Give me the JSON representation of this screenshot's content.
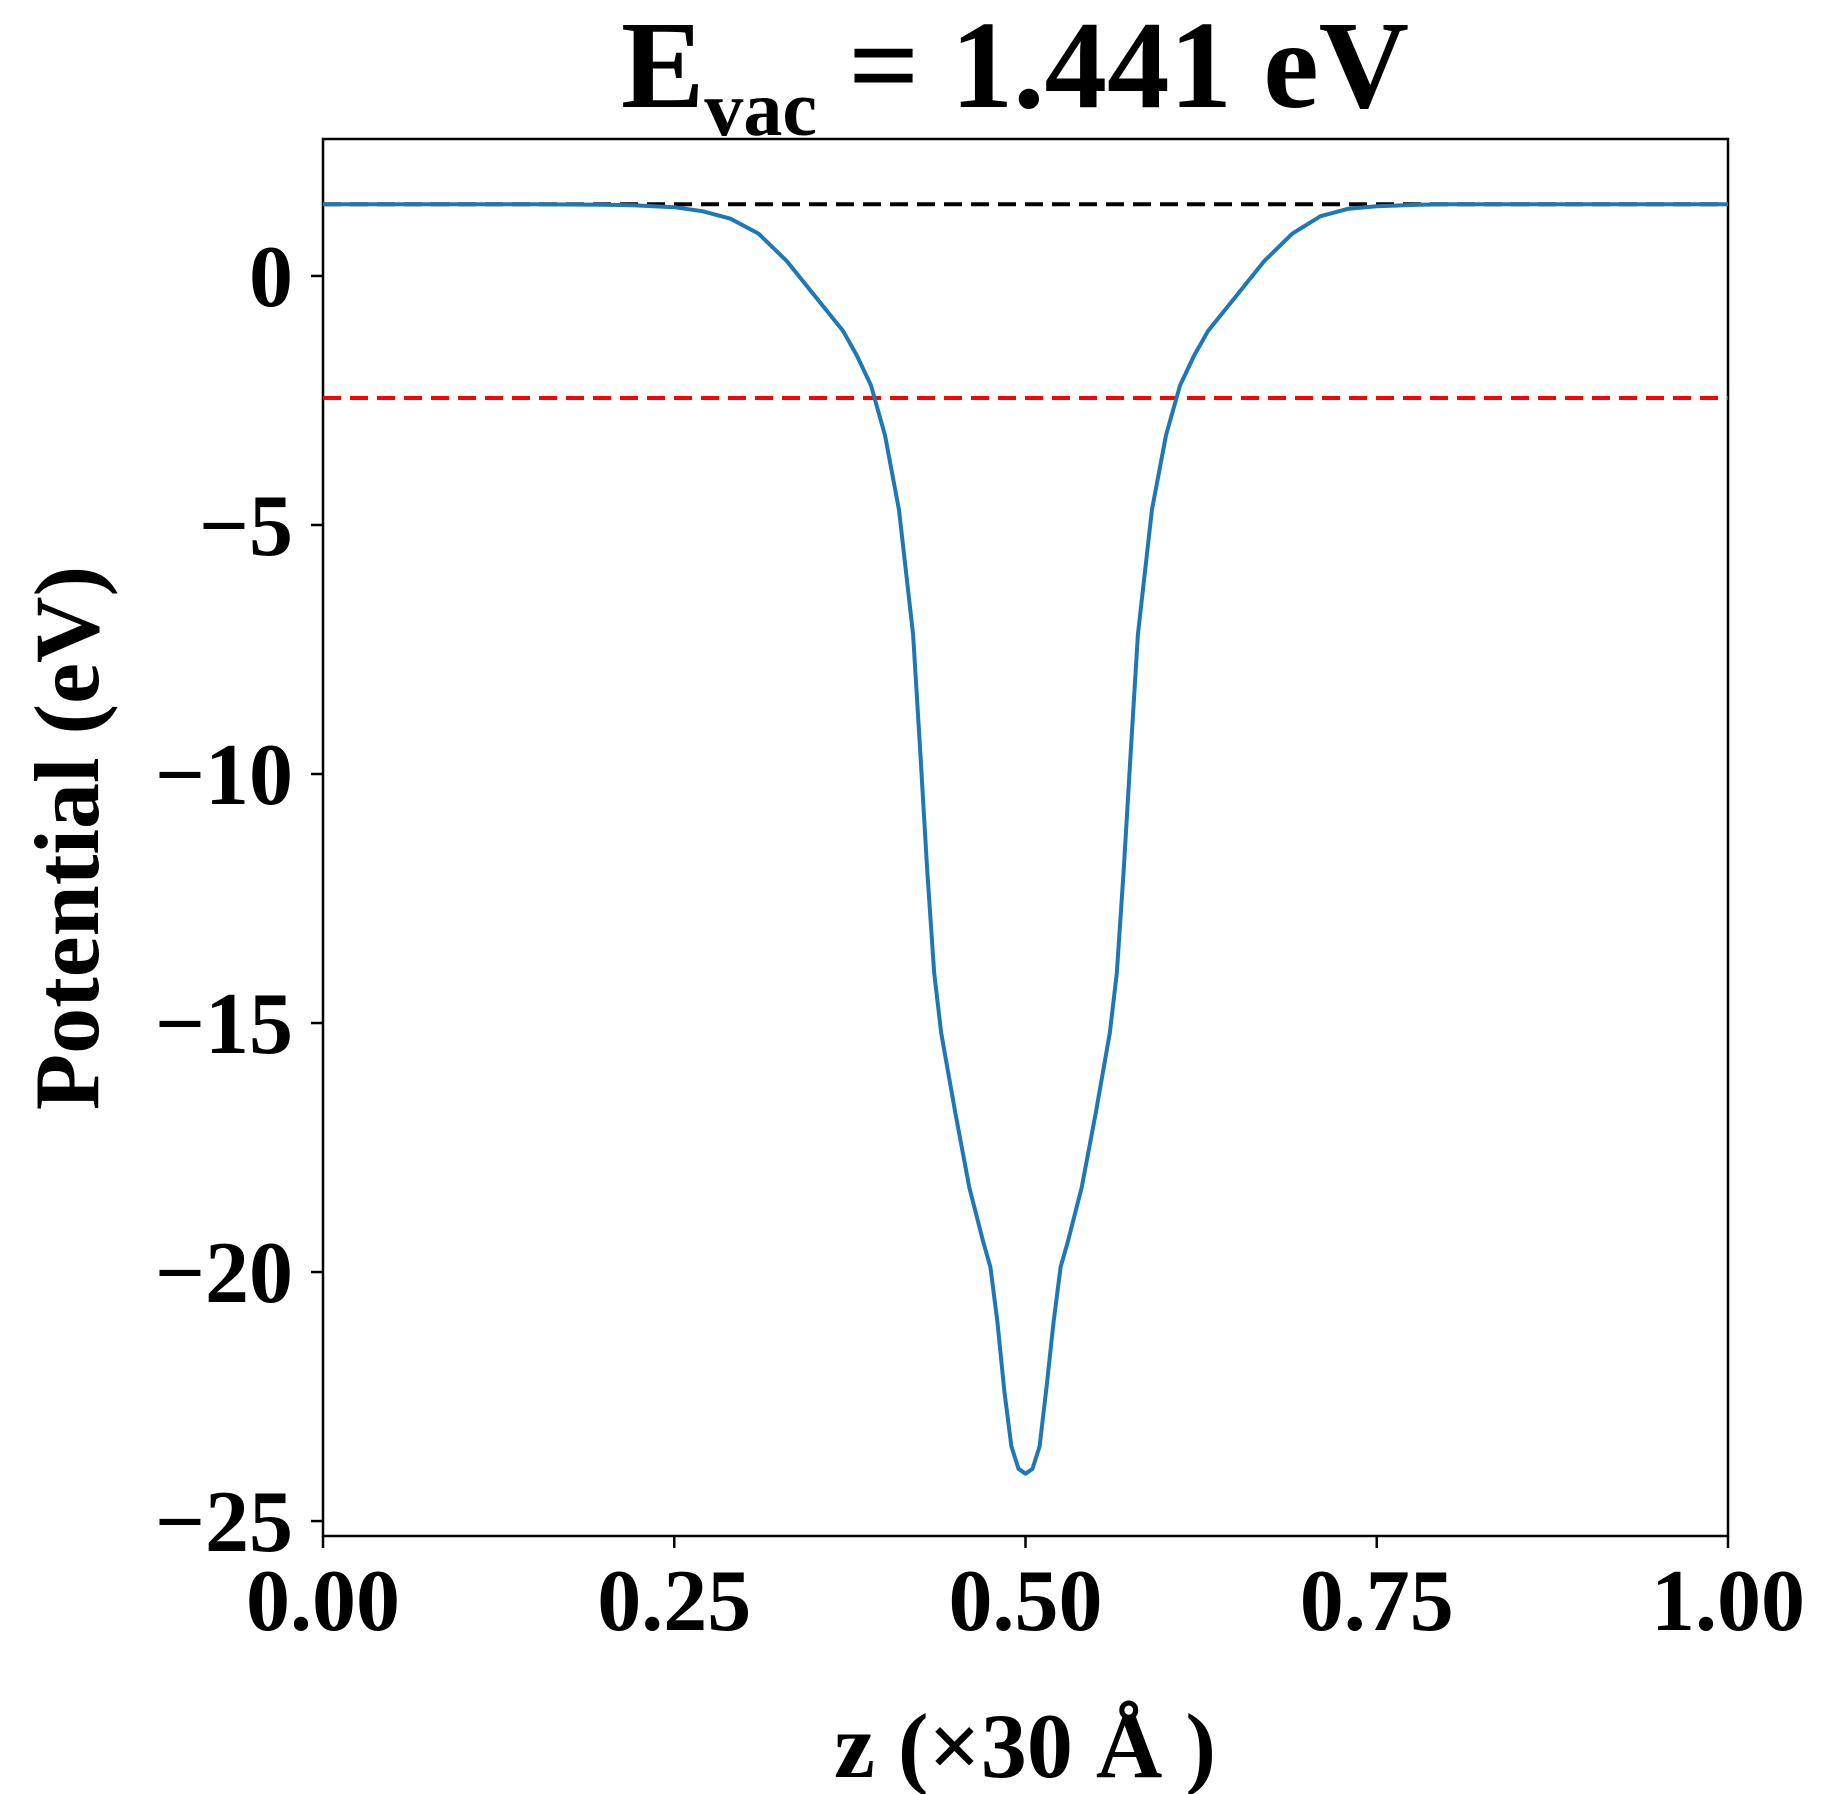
{
  "chart_data": {
    "type": "line",
    "title": {
      "main": "E",
      "subscript": "vac",
      "rest": " = 1.441 eV"
    },
    "xlabel": "z (×30 Å )",
    "ylabel": "Potential (eV)",
    "xlim": [
      0,
      1
    ],
    "ylim": [
      -25.3,
      2.75
    ],
    "grid": false,
    "x_ticks": [
      {
        "value": 0.0,
        "label": "0.00"
      },
      {
        "value": 0.25,
        "label": "0.25"
      },
      {
        "value": 0.5,
        "label": "0.50"
      },
      {
        "value": 0.75,
        "label": "0.75"
      },
      {
        "value": 1.0,
        "label": "1.00"
      }
    ],
    "y_ticks": [
      {
        "value": 0,
        "label": "0"
      },
      {
        "value": -5,
        "label": "−5"
      },
      {
        "value": -10,
        "label": "−10"
      },
      {
        "value": -15,
        "label": "−15"
      },
      {
        "value": -20,
        "label": "−20"
      },
      {
        "value": -25,
        "label": "−25"
      }
    ],
    "reference_lines": [
      {
        "y": 1.441,
        "color": "#000000",
        "style": "dashed"
      },
      {
        "y": -2.45,
        "color": "#ff0000",
        "style": "dashed"
      }
    ],
    "series": [
      {
        "color": "#1f77b4",
        "x": [
          0.0,
          0.05,
          0.1,
          0.15,
          0.2,
          0.22,
          0.25,
          0.27,
          0.29,
          0.31,
          0.33,
          0.35,
          0.37,
          0.38,
          0.39,
          0.4,
          0.41,
          0.42,
          0.425,
          0.43,
          0.435,
          0.44,
          0.45,
          0.46,
          0.47,
          0.475,
          0.48,
          0.485,
          0.49,
          0.495,
          0.5,
          0.505,
          0.51,
          0.515,
          0.52,
          0.525,
          0.53,
          0.54,
          0.55,
          0.56,
          0.565,
          0.57,
          0.575,
          0.58,
          0.59,
          0.6,
          0.61,
          0.62,
          0.63,
          0.65,
          0.67,
          0.69,
          0.71,
          0.73,
          0.75,
          0.78,
          0.8,
          0.85,
          0.9,
          0.95,
          1.0
        ],
        "y": [
          1.441,
          1.441,
          1.441,
          1.441,
          1.43,
          1.42,
          1.38,
          1.3,
          1.15,
          0.85,
          0.3,
          -0.4,
          -1.1,
          -1.6,
          -2.2,
          -3.2,
          -4.7,
          -7.2,
          -9.5,
          -11.9,
          -14.0,
          -15.2,
          -16.8,
          -18.3,
          -19.4,
          -19.9,
          -21.0,
          -22.4,
          -23.5,
          -23.95,
          -24.05,
          -23.95,
          -23.5,
          -22.3,
          -21.0,
          -19.9,
          -19.4,
          -18.3,
          -16.8,
          -15.2,
          -14.0,
          -11.9,
          -9.5,
          -7.2,
          -4.7,
          -3.2,
          -2.2,
          -1.6,
          -1.1,
          -0.4,
          0.3,
          0.85,
          1.2,
          1.35,
          1.4,
          1.43,
          1.441,
          1.441,
          1.441,
          1.441,
          1.441
        ]
      }
    ]
  }
}
